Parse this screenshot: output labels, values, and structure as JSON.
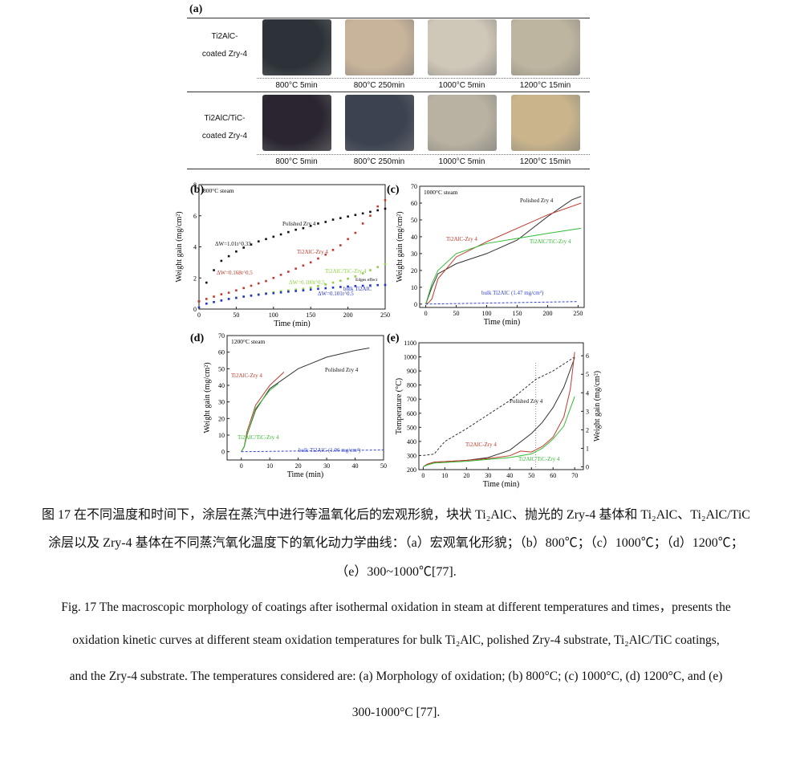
{
  "panel_a": {
    "label": "(a)",
    "row1_label": [
      "Ti2AlC-",
      "coated Zry-4"
    ],
    "row2_label": [
      "Ti2AlC/TiC-",
      "coated Zry-4"
    ],
    "conditions": [
      "800°C 5min",
      "800°C 250min",
      "1000°C 5min",
      "1200°C 15min"
    ],
    "row1_colors": [
      "#2c3238",
      "#c8b49a",
      "#cfc7b8",
      "#bdb59f"
    ],
    "row2_colors": [
      "#2a2530",
      "#3b4250",
      "#b9b2a2",
      "#c9b48c"
    ]
  },
  "chart_data": [
    {
      "panel": "(b)",
      "type": "scatter",
      "annotation": "800°C steam",
      "xlabel": "Time (min)",
      "ylabel": "Weight gain (mg/cm²)",
      "xlim": [
        0,
        250
      ],
      "ylim": [
        0,
        8
      ],
      "xticks": [
        0,
        50,
        100,
        150,
        200,
        250
      ],
      "yticks": [
        0,
        2,
        4,
        6,
        8
      ],
      "series": [
        {
          "name": "Polished Zry 4",
          "color": "#111111",
          "fit": "ΔW=1.01t^0.33",
          "x": [
            0,
            10,
            20,
            30,
            40,
            50,
            60,
            70,
            80,
            90,
            100,
            110,
            120,
            130,
            140,
            150,
            160,
            170,
            180,
            190,
            200,
            210,
            220,
            230,
            240,
            250
          ],
          "y": [
            0.5,
            1.7,
            2.5,
            3.1,
            3.4,
            3.7,
            3.95,
            4.15,
            4.35,
            4.5,
            4.65,
            4.8,
            4.95,
            5.1,
            5.2,
            5.35,
            5.5,
            5.6,
            5.75,
            5.85,
            5.95,
            6.05,
            6.15,
            6.25,
            6.35,
            6.45
          ]
        },
        {
          "name": "Ti2AlC-Zry 4",
          "color": "#c0392b",
          "fit": "ΔW=0.168t^0.5",
          "x": [
            0,
            10,
            20,
            30,
            40,
            50,
            60,
            70,
            80,
            90,
            100,
            110,
            120,
            130,
            140,
            150,
            160,
            170,
            180,
            190,
            200,
            210,
            220,
            230,
            240,
            250
          ],
          "y": [
            0.5,
            0.65,
            0.8,
            0.95,
            1.05,
            1.2,
            1.35,
            1.5,
            1.65,
            1.8,
            2.0,
            2.2,
            2.4,
            2.6,
            2.8,
            3.0,
            3.25,
            3.5,
            3.8,
            4.1,
            4.5,
            4.9,
            5.5,
            6.0,
            6.6,
            7.0
          ]
        },
        {
          "name": "Ti2AlC/TiC-Zry 4",
          "color": "#8fd13f",
          "fit": "ΔW=0.100t^0.5",
          "x": [
            0,
            10,
            20,
            30,
            40,
            50,
            60,
            70,
            80,
            90,
            100,
            110,
            120,
            130,
            140,
            150,
            160,
            170,
            180,
            190,
            200,
            210,
            220,
            230,
            240,
            250
          ],
          "y": [
            0.1,
            0.35,
            0.45,
            0.55,
            0.65,
            0.72,
            0.8,
            0.88,
            0.95,
            1.02,
            1.08,
            1.15,
            1.2,
            1.25,
            1.3,
            1.38,
            1.48,
            1.58,
            1.7,
            1.82,
            1.95,
            2.1,
            2.3,
            2.5,
            2.7,
            2.9
          ]
        },
        {
          "name": "bulk Ti2AlC",
          "color": "#2233cc",
          "fit": "ΔW=0.101t^0.5",
          "x": [
            0,
            10,
            20,
            30,
            40,
            50,
            60,
            70,
            80,
            90,
            100,
            110,
            120,
            130,
            140,
            150,
            160,
            170,
            180,
            190,
            200,
            210,
            220,
            230,
            240,
            250
          ],
          "y": [
            0.1,
            0.35,
            0.45,
            0.55,
            0.65,
            0.72,
            0.8,
            0.86,
            0.92,
            0.98,
            1.02,
            1.07,
            1.12,
            1.16,
            1.2,
            1.25,
            1.3,
            1.34,
            1.38,
            1.42,
            1.45,
            1.48,
            1.5,
            1.52,
            1.54,
            1.55
          ]
        }
      ],
      "extra_annotation": "Edges effect"
    },
    {
      "panel": "(c)",
      "type": "line",
      "annotation": "1000°C steam",
      "xlabel": "Time (min)",
      "ylabel": "Weight gain (mg/cm²)",
      "xlim": [
        -10,
        260
      ],
      "ylim": [
        -2,
        70
      ],
      "xticks": [
        0,
        50,
        100,
        150,
        200,
        250
      ],
      "yticks": [
        0,
        10,
        20,
        30,
        40,
        50,
        60,
        70
      ],
      "series": [
        {
          "name": "Polished Zry 4",
          "color": "#333333",
          "x": [
            0,
            5,
            10,
            20,
            50,
            100,
            150,
            200,
            240,
            255
          ],
          "y": [
            0,
            5,
            10,
            18,
            24,
            30,
            38,
            52,
            62,
            64
          ]
        },
        {
          "name": "Ti2AlC-Zry 4",
          "color": "#c0392b",
          "x": [
            0,
            5,
            10,
            20,
            50,
            100,
            150,
            200,
            255
          ],
          "y": [
            0,
            1,
            3,
            15,
            28,
            37,
            45,
            53,
            60
          ]
        },
        {
          "name": "Ti2AlC/TiC-Zry 4",
          "color": "#33bb33",
          "x": [
            0,
            5,
            10,
            20,
            50,
            100,
            150,
            200,
            255
          ],
          "y": [
            0,
            6,
            12,
            20,
            30,
            36,
            39,
            42,
            45
          ]
        },
        {
          "name": "bulk Ti2AlC (1.47 mg/cm²)",
          "color": "#3344cc",
          "dashed": true,
          "x": [
            0,
            250
          ],
          "y": [
            0,
            1.47
          ]
        }
      ]
    },
    {
      "panel": "(d)",
      "type": "line",
      "annotation": "1200°C steam",
      "xlabel": "Time (min)",
      "ylabel": "Weight gain (mg/cm²)",
      "xlim": [
        -5,
        50
      ],
      "ylim": [
        -5,
        70
      ],
      "xticks": [
        0,
        10,
        20,
        30,
        40,
        50
      ],
      "yticks": [
        0,
        10,
        20,
        30,
        40,
        50,
        60,
        70
      ],
      "series": [
        {
          "name": "Polished Zry 4",
          "color": "#333333",
          "x": [
            0,
            1,
            2,
            5,
            10,
            20,
            30,
            40,
            45
          ],
          "y": [
            0,
            3,
            10,
            25,
            38,
            50,
            57,
            61,
            62.5
          ]
        },
        {
          "name": "Ti2AlC-Zry 4",
          "color": "#c0392b",
          "x": [
            0,
            1,
            2,
            5,
            10,
            15
          ],
          "y": [
            0,
            3,
            12,
            28,
            40,
            48
          ]
        },
        {
          "name": "Ti2AlC/TiC-Zry 4",
          "color": "#33bb33",
          "x": [
            0,
            1,
            2,
            5,
            10,
            13
          ],
          "y": [
            0,
            3,
            10,
            26,
            37,
            41
          ]
        },
        {
          "name": "bulk Ti2AlC (1.06 mg/cm²)",
          "color": "#3344cc",
          "dashed": true,
          "x": [
            0,
            50
          ],
          "y": [
            0,
            1.06
          ]
        }
      ]
    },
    {
      "panel": "(e)",
      "type": "line",
      "xlabel": "Time (min)",
      "ylabel": "Temperature (°C)",
      "y2label": "Weight gain (mg/cm²)",
      "xlim": [
        -2,
        74
      ],
      "ylim": [
        200,
        1100
      ],
      "y2lim": [
        -0.15,
        6.7
      ],
      "xticks": [
        0,
        10,
        20,
        30,
        40,
        50,
        60,
        70
      ],
      "yticks": [
        200,
        300,
        400,
        500,
        600,
        700,
        800,
        900,
        1000,
        1100
      ],
      "y2ticks": [
        0,
        1,
        2,
        3,
        4,
        5,
        6
      ],
      "series": [
        {
          "name": "Temperature",
          "color": "#333333",
          "dashed": true,
          "axis": "left",
          "x": [
            0,
            5,
            10,
            20,
            30,
            40,
            52,
            60,
            70
          ],
          "y": [
            300,
            310,
            400,
            490,
            590,
            690,
            840,
            900,
            1000
          ]
        },
        {
          "name": "Polished Zry 4",
          "color": "#333333",
          "axis": "right",
          "x": [
            0,
            2,
            5,
            20,
            30,
            40,
            50,
            55,
            60,
            65,
            70
          ],
          "y": [
            0,
            0.15,
            0.25,
            0.35,
            0.5,
            0.9,
            1.8,
            2.4,
            3.2,
            4.3,
            5.9
          ]
        },
        {
          "name": "Ti2AlC-Zry 4",
          "color": "#c0392b",
          "axis": "right",
          "x": [
            0,
            2,
            5,
            20,
            30,
            40,
            45,
            50,
            55,
            60,
            65,
            68,
            70
          ],
          "y": [
            0,
            0.15,
            0.25,
            0.35,
            0.45,
            0.6,
            0.85,
            0.8,
            1.1,
            1.6,
            2.7,
            4.2,
            6.2
          ]
        },
        {
          "name": "Ti2AlC/TiC-Zry 4",
          "color": "#33bb33",
          "axis": "right",
          "x": [
            0,
            2,
            5,
            20,
            30,
            40,
            50,
            55,
            60,
            65,
            70
          ],
          "y": [
            0,
            0.1,
            0.2,
            0.3,
            0.4,
            0.5,
            0.7,
            1.0,
            1.5,
            2.2,
            3.8
          ]
        }
      ]
    }
  ],
  "caption": {
    "zh_line1": "图 17 在不同温度和时间下，涂层在蒸汽中进行等温氧化后的宏观形貌，块状 Ti₂AlC、抛光的 Zry-4 基体和 Ti₂AlC、Ti₂AlC/TiC",
    "zh_line2": "涂层以及 Zry-4 基体在不同蒸汽氧化温度下的氧化动力学曲线：（a）宏观氧化形貌；（b）800℃；（c）1000℃；（d）1200℃；",
    "zh_line3": "（e）300~1000℃[77].",
    "en_line1": "Fig. 17 The macroscopic morphology of coatings after isothermal oxidation in steam at different temperatures and times，presents the",
    "en_line2": "oxidation kinetic curves at different steam oxidation temperatures for bulk Ti₂AlC, polished Zry-4 substrate, Ti₂AlC/TiC coatings,",
    "en_line3": "and the Zry-4 substrate. The temperatures considered are: (a) Morphology of oxidation; (b) 800°C; (c) 1000°C, (d) 1200°C, and (e)",
    "en_line4": "300-1000°C [77]."
  }
}
